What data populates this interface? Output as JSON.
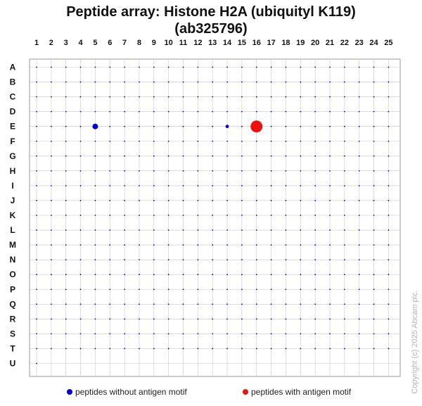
{
  "title_line1": "Peptide array:  Histone H2A (ubiquityl K119)",
  "title_line2": "(ab325796)",
  "copyright": "Copyright (c) 2025 Abcam plc.",
  "colors": {
    "without_motif": "#0000dd",
    "with_motif": "#ee1111",
    "grid": "#c8c8c8",
    "frame": "#999999"
  },
  "legend": [
    {
      "label": "peptides without antigen motif",
      "color": "#0000dd"
    },
    {
      "label": "peptides with antigen motif",
      "color": "#ee1111"
    }
  ],
  "chart_data": {
    "type": "scatter",
    "title": "Peptide array:  Histone H2A (ubiquityl K119) (ab325796)",
    "columns": [
      "1",
      "2",
      "3",
      "4",
      "5",
      "6",
      "7",
      "8",
      "9",
      "10",
      "11",
      "12",
      "13",
      "14",
      "15",
      "16",
      "17",
      "18",
      "19",
      "20",
      "21",
      "22",
      "23",
      "24",
      "25"
    ],
    "rows": [
      "A",
      "B",
      "C",
      "D",
      "E",
      "F",
      "G",
      "H",
      "I",
      "J",
      "K",
      "L",
      "M",
      "N",
      "O",
      "P",
      "Q",
      "R",
      "S",
      "T",
      "U"
    ],
    "grid": true,
    "legend_position": "bottom",
    "points": [
      {
        "row": "E",
        "col": 5,
        "size": "medium",
        "series": "without_motif"
      },
      {
        "row": "E",
        "col": 14,
        "size": "small",
        "series": "without_motif"
      },
      {
        "row": "E",
        "col": 16,
        "size": "large",
        "series": "with_motif"
      }
    ],
    "background_points": "all other peptides shown as tiny dots (without antigen motif)"
  }
}
